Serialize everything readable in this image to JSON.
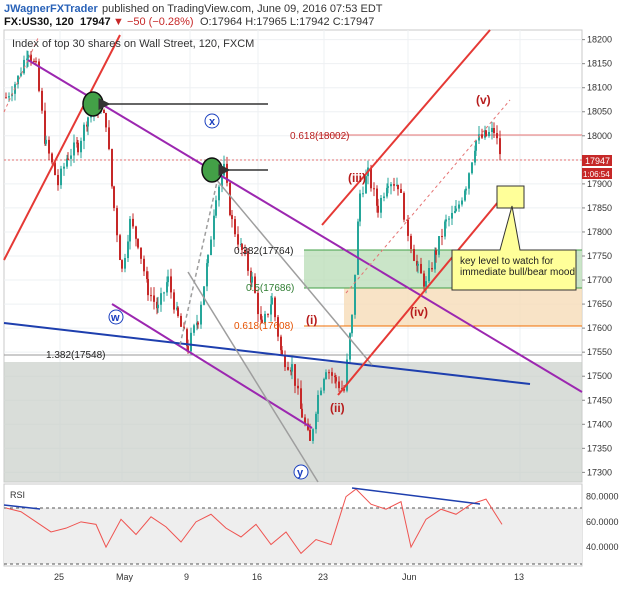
{
  "header": {
    "author": "JWagnerFXTrader",
    "published": "published on TradingView.com, June 09, 2016 07:53 EDT",
    "symbol": "FX:US30, 120",
    "last": "17947",
    "change": "▼ −50 (−0.28%)",
    "ohlc": "O:17964 H:17965 L:17942 C:17947"
  },
  "chart_title": "Index of top 30 shares on Wall Street, 120, FXCM",
  "colors": {
    "up": "#26a69a",
    "down": "#c62828",
    "channel": "#e53935",
    "purple": "#9c27b0",
    "blue": "#1e3fae",
    "rsi": "#ef5350"
  },
  "price_axis": [
    "18200",
    "18150",
    "18100",
    "18050",
    "18000",
    "17950",
    "17900",
    "17850",
    "17800",
    "17750",
    "17700",
    "17650",
    "17600",
    "17550",
    "17500",
    "17450",
    "17400",
    "17350",
    "17300"
  ],
  "price_tags": {
    "last": "17947",
    "countdown": "1:06:54"
  },
  "rsi_axis": [
    "80.0000",
    "60.0000",
    "40.0000"
  ],
  "rsi_label": "RSI",
  "x_axis": [
    "25",
    "May",
    "9",
    "16",
    "23",
    "Jun",
    "13"
  ],
  "fib_labels": {
    "f618_top": "0.618(18002)",
    "f382": "0.382(17764)",
    "f5": "0.5(17686)",
    "f618": "0.618(17608)",
    "f1382": "1.382(17548)"
  },
  "waves": {
    "i": "(i)",
    "ii": "(ii)",
    "iii": "(iii)",
    "iv": "(iv)",
    "v": "(v)",
    "w": "w",
    "x": "x",
    "y": "y"
  },
  "annotation": "key level to watch for immediate bull/bear mood",
  "chart_data": {
    "type": "candlestick",
    "title": "Index of top 30 shares on Wall Street, 120, FXCM",
    "ylim": [
      17280,
      18220
    ],
    "x_ticks": [
      "25",
      "May",
      "9",
      "16",
      "23",
      "Jun",
      "13"
    ],
    "path_points": [
      [
        0,
        18080
      ],
      [
        12,
        18120
      ],
      [
        22,
        18180
      ],
      [
        30,
        18140
      ],
      [
        40,
        17980
      ],
      [
        52,
        17900
      ],
      [
        62,
        17960
      ],
      [
        72,
        17980
      ],
      [
        82,
        18040
      ],
      [
        92,
        18060
      ],
      [
        100,
        18030
      ],
      [
        108,
        17850
      ],
      [
        116,
        17720
      ],
      [
        124,
        17820
      ],
      [
        132,
        17780
      ],
      [
        142,
        17680
      ],
      [
        152,
        17640
      ],
      [
        162,
        17700
      ],
      [
        172,
        17620
      ],
      [
        182,
        17560
      ],
      [
        192,
        17620
      ],
      [
        202,
        17740
      ],
      [
        210,
        17880
      ],
      [
        218,
        17930
      ],
      [
        226,
        17820
      ],
      [
        236,
        17760
      ],
      [
        246,
        17700
      ],
      [
        256,
        17600
      ],
      [
        266,
        17660
      ],
      [
        276,
        17540
      ],
      [
        286,
        17520
      ],
      [
        296,
        17420
      ],
      [
        304,
        17360
      ],
      [
        312,
        17460
      ],
      [
        320,
        17520
      ],
      [
        330,
        17490
      ],
      [
        338,
        17470
      ],
      [
        346,
        17620
      ],
      [
        354,
        17880
      ],
      [
        362,
        17920
      ],
      [
        372,
        17850
      ],
      [
        382,
        17910
      ],
      [
        392,
        17900
      ],
      [
        402,
        17800
      ],
      [
        412,
        17720
      ],
      [
        420,
        17690
      ],
      [
        430,
        17760
      ],
      [
        440,
        17820
      ],
      [
        450,
        17840
      ],
      [
        460,
        17900
      ],
      [
        470,
        17990
      ],
      [
        480,
        18000
      ],
      [
        488,
        18010
      ],
      [
        496,
        17950
      ]
    ],
    "rsi_ylim": [
      25,
      90
    ],
    "rsi_points": [
      [
        0,
        71
      ],
      [
        15,
        68
      ],
      [
        30,
        60
      ],
      [
        45,
        52
      ],
      [
        60,
        55
      ],
      [
        75,
        60
      ],
      [
        90,
        58
      ],
      [
        100,
        40
      ],
      [
        115,
        62
      ],
      [
        130,
        50
      ],
      [
        145,
        64
      ],
      [
        160,
        56
      ],
      [
        175,
        44
      ],
      [
        190,
        60
      ],
      [
        205,
        66
      ],
      [
        220,
        55
      ],
      [
        235,
        48
      ],
      [
        250,
        58
      ],
      [
        265,
        42
      ],
      [
        280,
        52
      ],
      [
        295,
        35
      ],
      [
        310,
        46
      ],
      [
        325,
        42
      ],
      [
        340,
        80
      ],
      [
        350,
        86
      ],
      [
        365,
        74
      ],
      [
        380,
        70
      ],
      [
        395,
        76
      ],
      [
        405,
        40
      ],
      [
        420,
        62
      ],
      [
        435,
        70
      ],
      [
        450,
        66
      ],
      [
        465,
        74
      ],
      [
        480,
        78
      ],
      [
        496,
        58
      ]
    ],
    "fib_levels": [
      {
        "label": "0.618",
        "value": 18002
      },
      {
        "label": "0.382",
        "value": 17764
      },
      {
        "label": "0.5",
        "value": 17686
      },
      {
        "label": "0.618",
        "value": 17608
      },
      {
        "label": "1.382",
        "value": 17548
      }
    ]
  }
}
